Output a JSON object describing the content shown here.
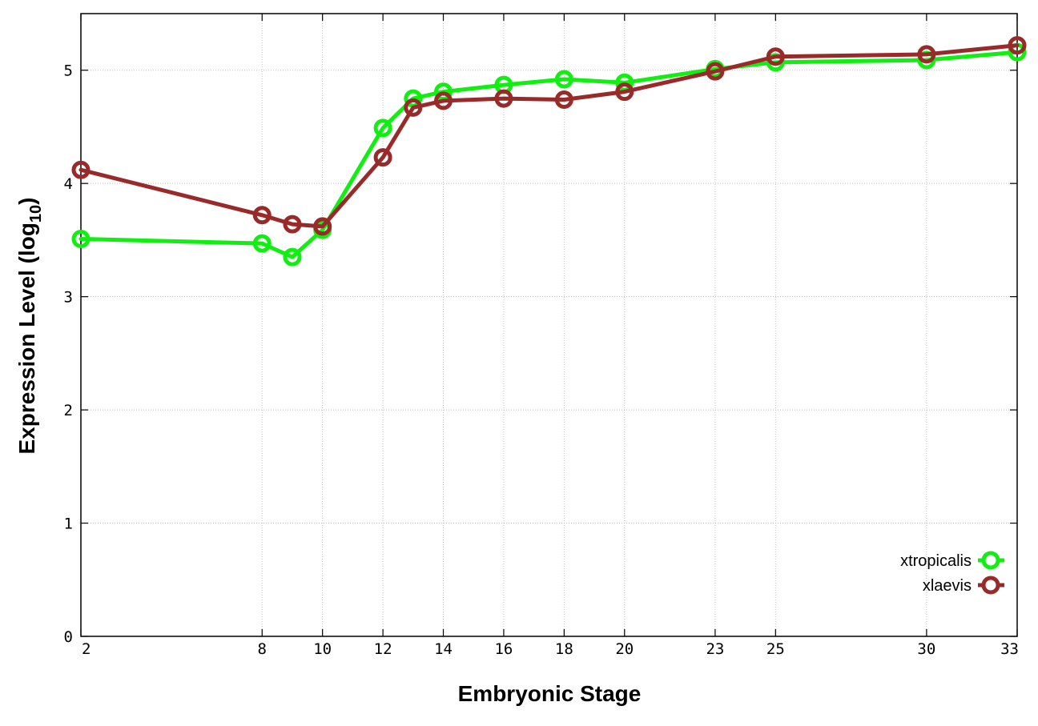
{
  "chart_data": {
    "type": "line",
    "xlabel": "Embryonic Stage",
    "ylabel_main": "Expression Level (log",
    "ylabel_sub": "10",
    "ylabel_close": ")",
    "x_ticks": [
      2,
      8,
      10,
      12,
      14,
      16,
      18,
      20,
      23,
      25,
      30,
      33
    ],
    "x_tick_labels": [
      "2",
      "8",
      "10",
      "12",
      "14",
      "16",
      "18",
      "20",
      "23",
      "25",
      "30",
      "33"
    ],
    "y_ticks": [
      0,
      1,
      2,
      3,
      4,
      5
    ],
    "y_tick_labels": [
      "0",
      "1",
      "2",
      "3",
      "4",
      "5"
    ],
    "xlim": [
      2,
      33
    ],
    "ylim": [
      0,
      5.5
    ],
    "grid": true,
    "legend_position": "bottom-right",
    "x_positions": [
      2,
      8,
      9,
      10,
      12,
      13,
      14,
      16,
      18,
      20,
      23,
      25,
      30,
      33
    ],
    "series": [
      {
        "name": "xtropicalis",
        "color": "#11ee11",
        "x": [
          2,
          8,
          9,
          10,
          12,
          13,
          14,
          16,
          18,
          20,
          23,
          25,
          30,
          33
        ],
        "values": [
          3.51,
          3.47,
          3.35,
          3.59,
          4.49,
          4.75,
          4.81,
          4.87,
          4.92,
          4.89,
          5.01,
          5.07,
          5.09,
          5.16
        ]
      },
      {
        "name": "xlaevis",
        "color": "#992a2a",
        "x": [
          2,
          8,
          9,
          10,
          12,
          13,
          14,
          16,
          18,
          20,
          23,
          25,
          30,
          33
        ],
        "values": [
          4.12,
          3.72,
          3.64,
          3.62,
          4.23,
          4.67,
          4.73,
          4.75,
          4.74,
          4.81,
          4.99,
          5.12,
          5.14,
          5.22
        ]
      }
    ]
  }
}
